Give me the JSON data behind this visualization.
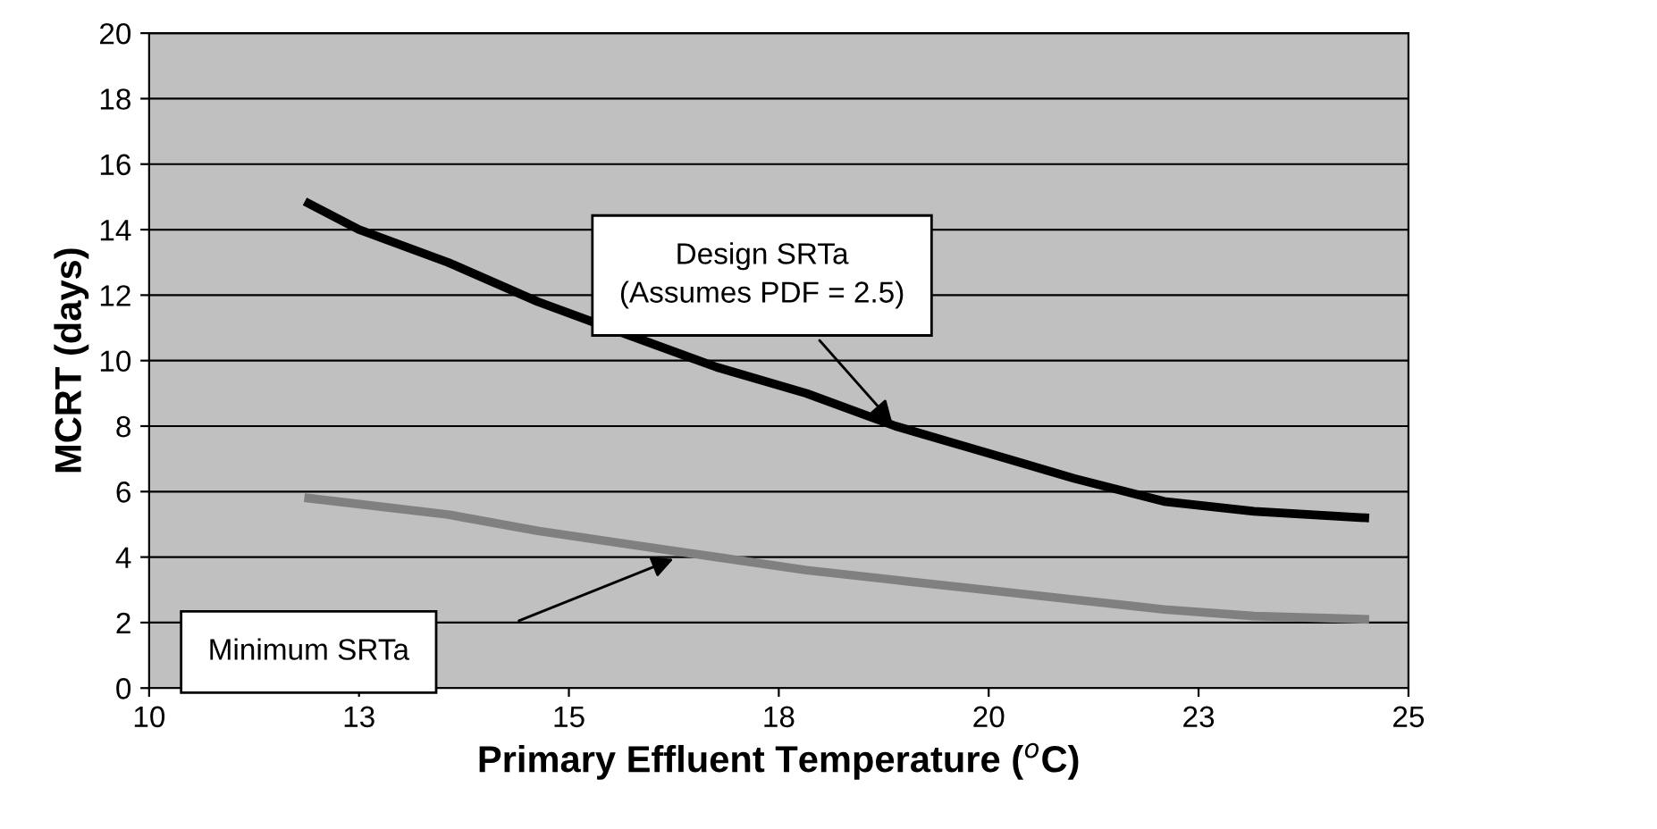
{
  "chart_data": {
    "type": "line",
    "xlabel": "Primary Effluent Temperature ($^{o}$C)",
    "ylabel": "MCRT (days)",
    "series": [
      {
        "color": "#000000",
        "x": [
          11.9,
          12.5,
          13.56,
          14.63,
          15.69,
          16.76,
          17.83,
          18.89,
          19.96,
          21.02,
          22.09,
          23.16,
          24.48
        ],
        "values": [
          14.8,
          14.0,
          13.0,
          11.8,
          10.8,
          9.8,
          9.0,
          8.0,
          7.2,
          6.4,
          5.7,
          5.4,
          5.2
        ]
      },
      {
        "color": "#808080",
        "x": [
          11.9,
          13.56,
          14.63,
          15.69,
          16.76,
          17.83,
          18.89,
          19.96,
          21.02,
          22.09,
          23.16,
          24.48
        ],
        "values": [
          5.8,
          5.3,
          4.8,
          4.4,
          4.0,
          3.6,
          3.3,
          3.0,
          2.7,
          2.4,
          2.2,
          2.1
        ]
      }
    ],
    "annotations": [
      {
        "text": "Design SRTa\n(Assumes PDF = 2.5)",
        "x": 18.89,
        "y": 8.0
      },
      "Minimum SRTa"
    ],
    "xlim": [
      10,
      25
    ],
    "xticks": [
      10,
      {
        "value": 12.5,
        "label": "13"
      },
      15,
      {
        "value": 17.5,
        "label": "18"
      },
      20,
      {
        "value": 22.5,
        "label": "23"
      },
      25
    ],
    "ylim": [
      0,
      20
    ],
    "yticks": [
      0,
      2,
      4,
      6,
      8,
      10,
      12,
      14,
      16,
      18,
      20
    ],
    "grid": "y",
    "marker": "none",
    "line_style": "solid",
    "legend": false
  }
}
